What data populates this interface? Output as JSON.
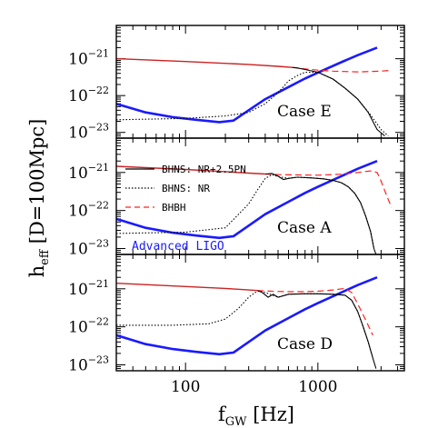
{
  "chart_data": {
    "type": "line",
    "xscale": "log",
    "yscale": "log",
    "xlim": [
      30,
      4500
    ],
    "ylim": [
      7e-24,
      8e-21
    ],
    "x_ticks": [
      {
        "value": 100,
        "label": "100"
      },
      {
        "value": 1000,
        "label": "1000"
      }
    ],
    "y_ticks": [
      {
        "value": 1e-21,
        "base": "10",
        "exponent": "−21"
      },
      {
        "value": 1e-22,
        "base": "10",
        "exponent": "−22"
      },
      {
        "value": 1e-23,
        "base": "10",
        "exponent": "−23"
      }
    ],
    "xlabel": {
      "main": "f",
      "sub": "GW",
      "unit": " [Hz]"
    },
    "ylabel": {
      "main": "h",
      "sub": "eff",
      "rest": " [D=100Mpc]"
    },
    "legend": {
      "placement": "top-left of middle panel",
      "entries": [
        {
          "label": "BHNS: NR+2.5PN",
          "style": "solid",
          "color": "#000000"
        },
        {
          "label": "BHNS: NR",
          "style": "dotted",
          "color": "#000000"
        },
        {
          "label": "BHBH",
          "style": "dashed",
          "color": "#ff2020"
        }
      ]
    },
    "ligo_label": "Advanced LIGO",
    "colors": {
      "ligo": "#1a1aff",
      "bhbh": "#ff2020",
      "pn": "#cc2222",
      "bhns": "#000000"
    },
    "ligo_curve": [
      [
        30,
        6e-23
      ],
      [
        50,
        3.5e-23
      ],
      [
        80,
        2.6e-23
      ],
      [
        120,
        2.2e-23
      ],
      [
        180,
        1.9e-23
      ],
      [
        230,
        2.1e-23
      ],
      [
        300,
        4e-23
      ],
      [
        400,
        8e-23
      ],
      [
        600,
        1.7e-22
      ],
      [
        800,
        2.9e-22
      ],
      [
        1000,
        4.2e-22
      ],
      [
        1500,
        8e-22
      ],
      [
        2000,
        1.25e-21
      ],
      [
        2800,
        2e-21
      ]
    ],
    "panels": [
      {
        "case": "Case E",
        "pn": [
          [
            30,
            1e-21
          ],
          [
            100,
            8.4e-22
          ],
          [
            300,
            7e-22
          ],
          [
            500,
            6.2e-22
          ],
          [
            640,
            5.8e-22
          ]
        ],
        "bhbh": [
          [
            640,
            5.8e-22
          ],
          [
            800,
            5.3e-22
          ],
          [
            1000,
            4.9e-22
          ],
          [
            1300,
            4.6e-22
          ],
          [
            1600,
            4.5e-22
          ],
          [
            2000,
            4.4e-22
          ],
          [
            2500,
            4.5e-22
          ],
          [
            3000,
            4.6e-22
          ],
          [
            3500,
            4.8e-22
          ]
        ],
        "nr_hybrid": [
          [
            640,
            5.8e-22
          ],
          [
            700,
            5.6e-22
          ],
          [
            800,
            5.1e-22
          ],
          [
            1000,
            4.3e-22
          ],
          [
            1300,
            2.8e-22
          ],
          [
            1600,
            1.6e-22
          ],
          [
            2000,
            8e-23
          ],
          [
            2400,
            3.5e-23
          ],
          [
            2800,
            1.2e-23
          ],
          [
            3200,
            8e-24
          ]
        ],
        "nr": [
          [
            30,
            2.2e-23
          ],
          [
            100,
            2.4e-23
          ],
          [
            200,
            2.8e-23
          ],
          [
            300,
            3.5e-23
          ],
          [
            400,
            6e-23
          ],
          [
            500,
            1.2e-22
          ],
          [
            600,
            2.5e-22
          ],
          [
            700,
            3.5e-22
          ],
          [
            800,
            4.3e-22
          ],
          [
            1000,
            4.3e-22
          ],
          [
            1300,
            2.8e-22
          ],
          [
            1600,
            1.6e-22
          ],
          [
            2000,
            8e-23
          ],
          [
            2500,
            3e-23
          ],
          [
            3000,
            1.2e-23
          ],
          [
            3400,
            8e-24
          ]
        ]
      },
      {
        "case": "Case A",
        "pn": [
          [
            30,
            1.45e-21
          ],
          [
            100,
            1.2e-21
          ],
          [
            200,
            1.05e-21
          ],
          [
            300,
            9.6e-22
          ],
          [
            400,
            9.1e-22
          ]
        ],
        "bhbh": [
          [
            400,
            9.1e-22
          ],
          [
            500,
            8.8e-22
          ],
          [
            700,
            8.6e-22
          ],
          [
            1000,
            8.5e-22
          ],
          [
            1500,
            9e-22
          ],
          [
            2000,
            1e-21
          ],
          [
            2500,
            1.1e-21
          ],
          [
            2800,
            1e-21
          ],
          [
            3000,
            6e-22
          ],
          [
            3300,
            2.5e-22
          ],
          [
            3600,
            1.2e-22
          ]
        ],
        "nr_hybrid": [
          [
            400,
            9.1e-22
          ],
          [
            450,
            9.4e-22
          ],
          [
            500,
            8e-22
          ],
          [
            550,
            6.5e-22
          ],
          [
            600,
            7e-22
          ],
          [
            700,
            7.5e-22
          ],
          [
            900,
            7.2e-22
          ],
          [
            1100,
            6.8e-22
          ],
          [
            1300,
            6.2e-22
          ],
          [
            1500,
            5.4e-22
          ],
          [
            1700,
            4.2e-22
          ],
          [
            1900,
            2.8e-22
          ],
          [
            2100,
            1.6e-22
          ],
          [
            2300,
            7e-23
          ],
          [
            2500,
            2.8e-23
          ],
          [
            2650,
            1e-23
          ],
          [
            2750,
            7e-24
          ]
        ],
        "nr": [
          [
            30,
            2.5e-23
          ],
          [
            100,
            2.7e-23
          ],
          [
            200,
            3.5e-23
          ],
          [
            300,
            1.5e-22
          ],
          [
            350,
            3.5e-22
          ],
          [
            400,
            7e-22
          ],
          [
            450,
            8.7e-22
          ],
          [
            500,
            7.8e-22
          ],
          [
            600,
            7e-22
          ],
          [
            700,
            7.5e-22
          ],
          [
            900,
            7.2e-22
          ],
          [
            1100,
            6.8e-22
          ],
          [
            1300,
            6.2e-22
          ],
          [
            1500,
            5.4e-22
          ],
          [
            1700,
            4.2e-22
          ],
          [
            1900,
            2.8e-22
          ],
          [
            2100,
            1.6e-22
          ],
          [
            2300,
            7e-23
          ],
          [
            2500,
            2.8e-23
          ],
          [
            2650,
            1e-23
          ]
        ]
      },
      {
        "case": "Case D",
        "pn": [
          [
            30,
            1.4e-21
          ],
          [
            100,
            1.15e-21
          ],
          [
            200,
            1.02e-21
          ],
          [
            300,
            9.3e-22
          ],
          [
            350,
            9e-22
          ]
        ],
        "bhbh": [
          [
            350,
            9e-22
          ],
          [
            450,
            8.6e-22
          ],
          [
            600,
            8.4e-22
          ],
          [
            800,
            8.4e-22
          ],
          [
            1000,
            8.6e-22
          ],
          [
            1300,
            9.3e-22
          ],
          [
            1600,
            1.02e-21
          ],
          [
            1800,
            8e-22
          ],
          [
            2000,
            4e-22
          ],
          [
            2300,
            1.5e-22
          ],
          [
            2600,
            6e-23
          ]
        ],
        "nr_hybrid": [
          [
            350,
            9e-22
          ],
          [
            380,
            8e-22
          ],
          [
            420,
            6e-22
          ],
          [
            460,
            7.2e-22
          ],
          [
            500,
            6e-22
          ],
          [
            600,
            7.2e-22
          ],
          [
            800,
            7.4e-22
          ],
          [
            1000,
            7.4e-22
          ],
          [
            1300,
            7.2e-22
          ],
          [
            1600,
            6.8e-22
          ],
          [
            1800,
            5e-22
          ],
          [
            2000,
            2.5e-22
          ],
          [
            2200,
            1e-22
          ],
          [
            2400,
            4e-23
          ],
          [
            2600,
            1.5e-23
          ],
          [
            2750,
            8e-24
          ]
        ],
        "nr": [
          [
            30,
            1.1e-22
          ],
          [
            80,
            1.1e-22
          ],
          [
            150,
            1.2e-22
          ],
          [
            200,
            1.6e-22
          ],
          [
            250,
            3e-22
          ],
          [
            300,
            6e-22
          ],
          [
            350,
            8.8e-22
          ],
          [
            400,
            8e-22
          ],
          [
            500,
            6e-22
          ],
          [
            600,
            7.2e-22
          ],
          [
            800,
            7.4e-22
          ],
          [
            1000,
            7.4e-22
          ],
          [
            1300,
            7.2e-22
          ],
          [
            1600,
            6.8e-22
          ],
          [
            1800,
            5e-22
          ],
          [
            2000,
            2.5e-22
          ],
          [
            2200,
            1e-22
          ],
          [
            2400,
            4e-23
          ],
          [
            2600,
            1.5e-23
          ]
        ]
      }
    ]
  }
}
